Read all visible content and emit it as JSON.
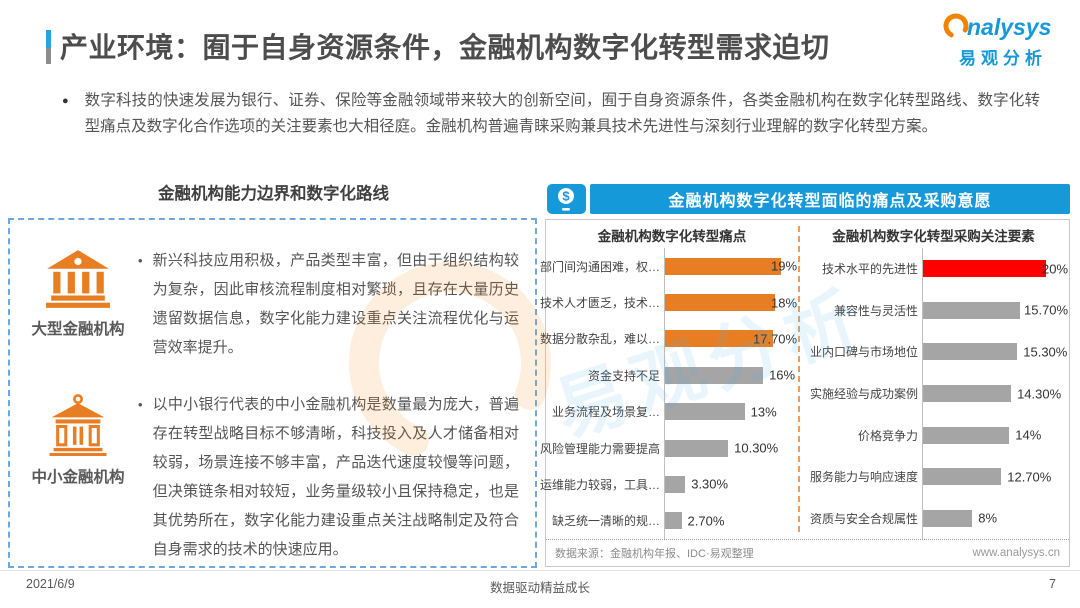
{
  "page": {
    "title": "产业环境：囿于自身资源条件，金融机构数字化转型需求迫切",
    "footer": {
      "date": "2021/6/9",
      "center_text": "数据驱动精益成长",
      "page_number": "7"
    }
  },
  "logo": {
    "brand_suffix": "nalysys",
    "brand_cn": "易观分析"
  },
  "intro": {
    "marker": "●",
    "text": "数字科技的快速发展为银行、证券、保险等金融领域带来较大的创新空间，囿于自身资源条件，各类金融机构在数字化转型路线、数字化转型痛点及数字化合作选项的关注要素也大相径庭。金融机构普遍青睐采购兼具技术先进性与深刻行业理解的数字化转型方案。"
  },
  "left_section": {
    "title": "金融机构能力边界和数字化路线",
    "marker": "•",
    "blocks": [
      {
        "icon": "bank-icon",
        "label": "大型金融机构",
        "text": "新兴科技应用积极，产品类型丰富，但由于组织结构较为复杂，因此审核流程制度相对繁琐，且存在大量历史遗留数据信息，数字化能力建设重点关注流程优化与运营效率提升。"
      },
      {
        "icon": "bank-outline-icon",
        "label": "中小金融机构",
        "text": "以中小银行代表的中小金融机构是数量最为庞大，普遍存在转型战略目标不够清晰，科技投入及人才储备相对较弱，场景连接不够丰富，产品迭代速度较慢等问题，但决策链条相对较短，业务量级较小且保持稳定，也是其优势所在，数字化能力建设重点关注战略制定及符合自身需求的技术的快速应用。"
      }
    ]
  },
  "right_section": {
    "header": "金融机构数字化转型面临的痛点及采购意愿",
    "source": "数据来源：金融机构年报、IDC·易观整理",
    "website": "www.analysys.cn"
  },
  "watermarks": {
    "cn": "易观分析"
  },
  "colors": {
    "primary_blue": "#1699D8",
    "accent_orange": "#E87E23",
    "bar_gray": "#A5A5A5",
    "highlight_red": "#FE0000",
    "dashed_box_blue": "#6FA8DC"
  },
  "chart_data": [
    {
      "type": "bar",
      "orientation": "horizontal",
      "title": "金融机构数字化转型痛点",
      "categories": [
        "部门间沟通困难，权…",
        "技术人才匮乏，技术…",
        "数据分散杂乱，难以…",
        "资金支持不足",
        "业务流程及场景复…",
        "风险管理能力需要提高",
        "运维能力较弱，工具…",
        "缺乏统一清晰的规…"
      ],
      "values": [
        19,
        18,
        17.7,
        16,
        13,
        10.3,
        3.3,
        2.7
      ],
      "labels": [
        "19%",
        "18%",
        "17.70%",
        "16%",
        "13%",
        "10.30%",
        "3.30%",
        "2.70%"
      ],
      "colors": [
        "#E87E23",
        "#E87E23",
        "#E87E23",
        "#A5A5A5",
        "#A5A5A5",
        "#A5A5A5",
        "#A5A5A5",
        "#A5A5A5"
      ],
      "xmax": 21.7,
      "grid": false,
      "value_label_position": "outside-end-clamped"
    },
    {
      "type": "bar",
      "orientation": "horizontal",
      "title": "金融机构数字化转型采购关注要素",
      "categories": [
        "技术水平的先进性",
        "兼容性与灵活性",
        "业内口碑与市场地位",
        "实施经验与成功案例",
        "价格竞争力",
        "服务能力与响应速度",
        "资质与安全合规属性"
      ],
      "values": [
        20,
        15.7,
        15.3,
        14.3,
        14,
        12.7,
        8
      ],
      "labels": [
        "20%",
        "15.70%",
        "15.30%",
        "14.30%",
        "14%",
        "12.70%",
        "8%"
      ],
      "colors": [
        "#FE0000",
        "#A5A5A5",
        "#A5A5A5",
        "#A5A5A5",
        "#A5A5A5",
        "#A5A5A5",
        "#A5A5A5"
      ],
      "xmax": 23.7,
      "grid": false,
      "value_label_position": "outside-end-clamped"
    }
  ]
}
